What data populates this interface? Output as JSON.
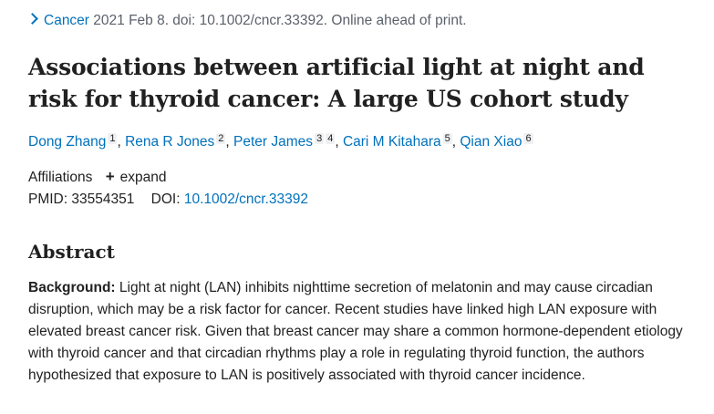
{
  "citation": {
    "journal": "Cancer",
    "details": " 2021 Feb 8. doi: 10.1002/cncr.33392. Online ahead of print."
  },
  "article": {
    "title": "Associations between artificial light at night and risk for thyroid cancer: A large US cohort study"
  },
  "authors": [
    {
      "name": "Dong Zhang",
      "sup": "1"
    },
    {
      "name": "Rena R Jones",
      "sup": "2"
    },
    {
      "name": "Peter James",
      "sup": "3",
      "sup2": "4"
    },
    {
      "name": "Cari M Kitahara",
      "sup": "5"
    },
    {
      "name": "Qian Xiao",
      "sup": "6"
    }
  ],
  "affiliations": {
    "label": "Affiliations",
    "expand_label": "expand"
  },
  "ids": {
    "pmid_label": "PMID: 33554351",
    "doi_label": "DOI:",
    "doi_value": "10.1002/cncr.33392"
  },
  "abstract": {
    "heading": "Abstract",
    "background_label": "Background:",
    "background_text": " Light at night (LAN) inhibits nighttime secretion of melatonin and may cause circadian disruption, which may be a risk factor for cancer. Recent studies have linked high LAN exposure with elevated breast cancer risk. Given that breast cancer may share a common hormone-dependent etiology with thyroid cancer and that circadian rhythms play a role in regulating thyroid function, the authors hypothesized that exposure to LAN is positively associated with thyroid cancer incidence."
  },
  "colors": {
    "link": "#0071bc",
    "text": "#212121",
    "muted": "#5b616b"
  }
}
